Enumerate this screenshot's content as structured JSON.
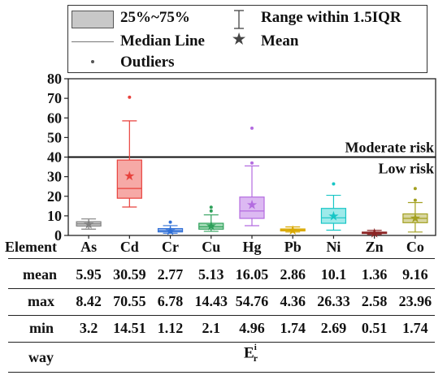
{
  "legend": {
    "iqr_label": "25%~75%",
    "range_label": "Range within 1.5IQR",
    "median_label": "Median Line",
    "mean_label": "Mean",
    "outliers_label": "Outliers"
  },
  "chart_data": {
    "type": "box",
    "ylim": [
      0,
      80
    ],
    "yticks": [
      "0",
      "10",
      "20",
      "30",
      "40",
      "50",
      "60",
      "70",
      "80"
    ],
    "reference_line": {
      "value": 40,
      "label_above": "Moderate risk",
      "label_below": "Low risk"
    },
    "categories": [
      "As",
      "Cd",
      "Cr",
      "Cu",
      "Hg",
      "Pb",
      "Ni",
      "Zn",
      "Co"
    ],
    "colors": [
      "#808080",
      "#e8413c",
      "#2f6fd6",
      "#2ea05a",
      "#b36be0",
      "#d9a800",
      "#17c6c6",
      "#8b2525",
      "#a3a020"
    ],
    "fills": [
      "#d0d0d0",
      "#f6a9a6",
      "#a9c2ee",
      "#a6dcb9",
      "#dcb9f2",
      "#f2dd8a",
      "#9eeaea",
      "#d59a9a",
      "#d8d6a0"
    ],
    "boxes": [
      {
        "whisker_low": 3.2,
        "q1": 4.8,
        "median": 5.9,
        "q3": 7.0,
        "whisker_high": 8.42,
        "mean": 5.95,
        "outliers": []
      },
      {
        "whisker_low": 14.51,
        "q1": 19.0,
        "median": 24.0,
        "q3": 38.5,
        "whisker_high": 58.5,
        "mean": 30.59,
        "outliers": [
          70.55
        ]
      },
      {
        "whisker_low": 1.12,
        "q1": 1.8,
        "median": 2.5,
        "q3": 3.5,
        "whisker_high": 5.0,
        "mean": 2.77,
        "outliers": [
          6.78
        ]
      },
      {
        "whisker_low": 2.1,
        "q1": 3.2,
        "median": 4.4,
        "q3": 6.2,
        "whisker_high": 10.5,
        "mean": 5.13,
        "outliers": [
          12.5,
          14.43
        ]
      },
      {
        "whisker_low": 4.96,
        "q1": 8.7,
        "median": 12.5,
        "q3": 19.6,
        "whisker_high": 35.5,
        "mean": 16.05,
        "outliers": [
          37.0,
          54.76
        ]
      },
      {
        "whisker_low": 1.74,
        "q1": 2.3,
        "median": 2.8,
        "q3": 3.3,
        "whisker_high": 4.36,
        "mean": 2.86,
        "outliers": []
      },
      {
        "whisker_low": 2.69,
        "q1": 6.2,
        "median": 9.0,
        "q3": 13.8,
        "whisker_high": 20.5,
        "mean": 10.1,
        "outliers": [
          26.33
        ]
      },
      {
        "whisker_low": 0.51,
        "q1": 1.0,
        "median": 1.3,
        "q3": 1.7,
        "whisker_high": 2.58,
        "mean": 1.36,
        "outliers": []
      },
      {
        "whisker_low": 1.74,
        "q1": 6.5,
        "median": 8.7,
        "q3": 11.0,
        "whisker_high": 16.8,
        "mean": 9.16,
        "outliers": [
          18.0,
          23.96
        ]
      }
    ]
  },
  "table": {
    "header": "Element",
    "rows": [
      {
        "label": "mean",
        "values": [
          "5.95",
          "30.59",
          "2.77",
          "5.13",
          "16.05",
          "2.86",
          "10.1",
          "1.36",
          "9.16"
        ]
      },
      {
        "label": "max",
        "values": [
          "8.42",
          "70.55",
          "6.78",
          "14.43",
          "54.76",
          "4.36",
          "26.33",
          "2.58",
          "23.96"
        ]
      },
      {
        "label": "min",
        "values": [
          "3.2",
          "14.51",
          "1.12",
          "2.1",
          "4.96",
          "1.74",
          "2.69",
          "0.51",
          "1.74"
        ]
      }
    ],
    "way_label": "way",
    "way_symbol": "E",
    "way_sup": "i",
    "way_sub": "r"
  }
}
